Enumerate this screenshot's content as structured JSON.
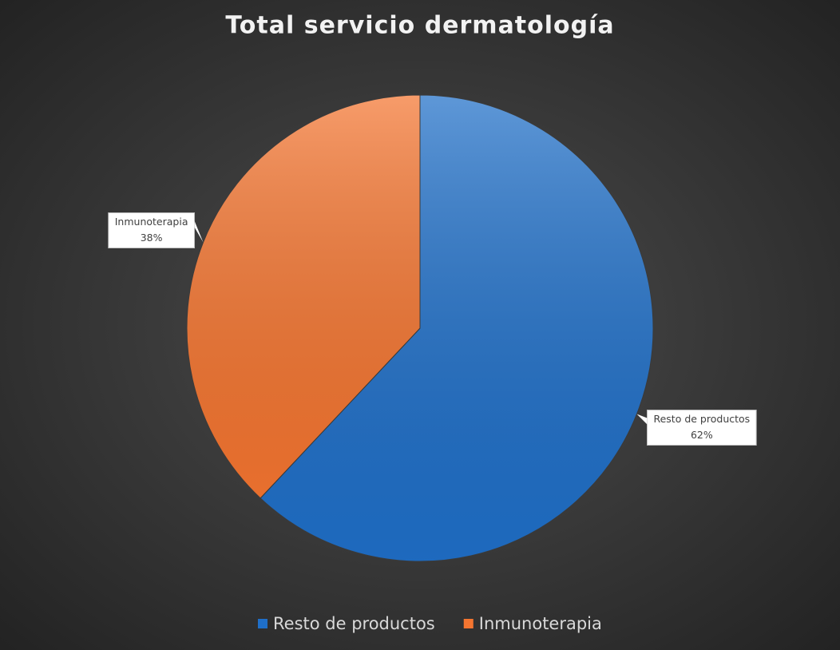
{
  "chart_data": {
    "type": "pie",
    "title": "Total servicio dermatología",
    "categories": [
      "Resto de productos",
      "Inmunoterapia"
    ],
    "values": [
      62,
      38
    ],
    "value_labels": [
      "62%",
      "38%"
    ],
    "colors": [
      "#1f6fc8",
      "#f47530"
    ],
    "legend": "bottom"
  }
}
